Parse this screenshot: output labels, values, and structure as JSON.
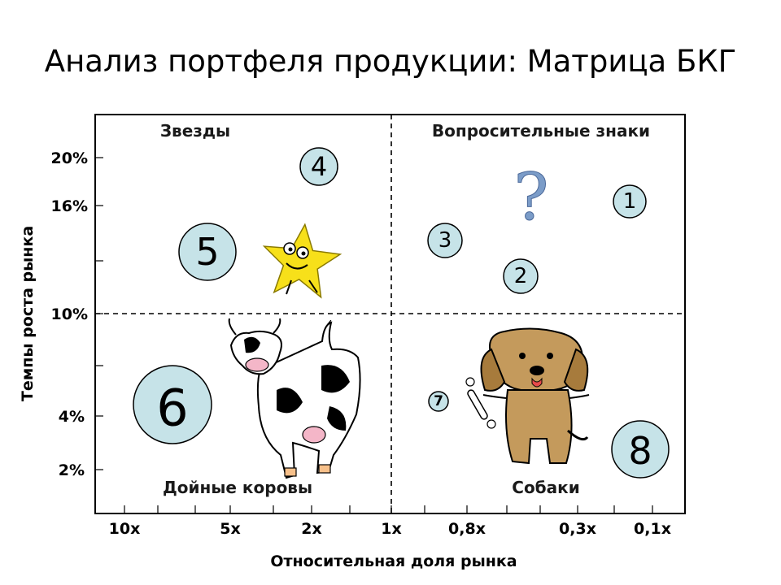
{
  "title": "Анализ портфеля продукции: Матрица БКГ",
  "quadrants": {
    "stars": "Звезды",
    "question_marks": "Вопросительные знаки",
    "cash_cows": "Дойные коровы",
    "dogs": "Собаки"
  },
  "y_axis": {
    "label": "Темпы роста рынка",
    "ticks": [
      "20%",
      "16%",
      "10%",
      "4%",
      "2%"
    ]
  },
  "x_axis": {
    "label": "Относительная доля рынка",
    "ticks": [
      "10x",
      "5x",
      "2x",
      "1x",
      "0,8x",
      "0,3x",
      "0,1x"
    ]
  },
  "products": [
    "1",
    "2",
    "3",
    "4",
    "5",
    "6",
    "7",
    "8"
  ],
  "question_glyph": "?",
  "colors": {
    "bubble": "#c6e3e8",
    "star": "#f7e01a",
    "dog": "#c49a5c",
    "question": "#7b9cc8"
  }
}
